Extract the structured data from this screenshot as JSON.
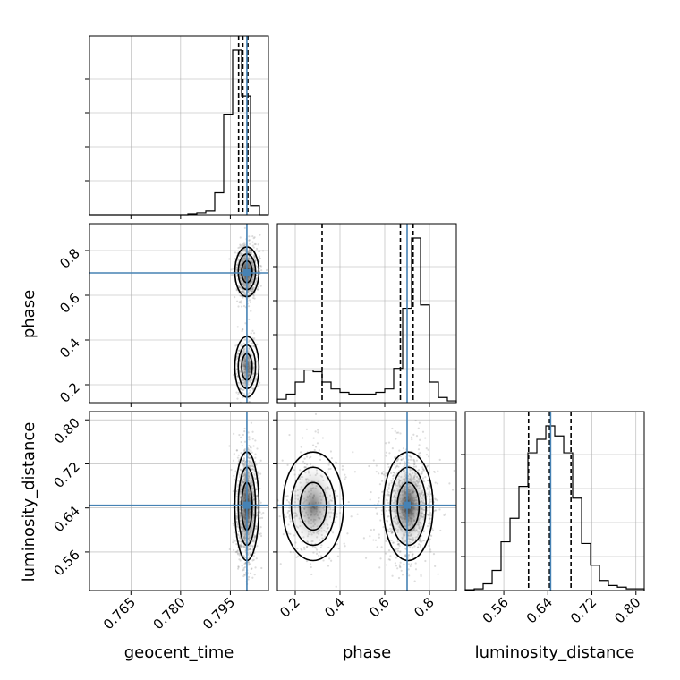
{
  "chart_data": {
    "type": "corner",
    "parameters": [
      "geocent_time",
      "phase",
      "luminosity_distance"
    ],
    "truths": {
      "geocent_time": 0.8,
      "phase": 0.7,
      "luminosity_distance": 0.645
    },
    "ranges": {
      "geocent_time": [
        0.7525,
        0.8065
      ],
      "phase": [
        0.12,
        0.92
      ],
      "luminosity_distance": [
        0.49,
        0.815
      ]
    },
    "ticks": {
      "geocent_time": [
        0.765,
        0.78,
        0.795
      ],
      "phase": [
        0.2,
        0.4,
        0.6,
        0.8
      ],
      "luminosity_distance": [
        0.56,
        0.64,
        0.72,
        0.8
      ]
    },
    "tick_labels": {
      "geocent_time": [
        "0.765",
        "0.780",
        "0.795"
      ],
      "phase": [
        "0.2",
        "0.4",
        "0.6",
        "0.8"
      ],
      "luminosity_distance": [
        "0.56",
        "0.64",
        "0.72",
        "0.80"
      ]
    },
    "quantiles": {
      "geocent_time": [
        0.7975,
        0.7988,
        0.8003
      ],
      "phase": [
        0.32,
        0.67,
        0.727
      ],
      "luminosity_distance": [
        0.605,
        0.643,
        0.682
      ]
    },
    "histograms": {
      "geocent_time": {
        "edges": [
          0.7525,
          0.7552,
          0.7579,
          0.7606,
          0.7633,
          0.766,
          0.7687,
          0.7714,
          0.7741,
          0.7768,
          0.7795,
          0.7822,
          0.7849,
          0.7876,
          0.7903,
          0.793,
          0.7957,
          0.7984,
          0.8011,
          0.8038,
          0.8065
        ],
        "counts": [
          0,
          0,
          0,
          0,
          0,
          0,
          0,
          0,
          0,
          0,
          0,
          0.005,
          0.01,
          0.02,
          0.12,
          0.55,
          0.9,
          0.65,
          0.05,
          0
        ]
      },
      "phase": {
        "edges": [
          0.12,
          0.16,
          0.2,
          0.24,
          0.28,
          0.32,
          0.36,
          0.4,
          0.44,
          0.48,
          0.52,
          0.56,
          0.6,
          0.64,
          0.68,
          0.72,
          0.76,
          0.8,
          0.84,
          0.88,
          0.92
        ],
        "counts": [
          0.02,
          0.05,
          0.12,
          0.19,
          0.18,
          0.12,
          0.08,
          0.06,
          0.05,
          0.05,
          0.05,
          0.06,
          0.08,
          0.2,
          0.55,
          0.96,
          0.57,
          0.12,
          0.03,
          0.01
        ]
      },
      "luminosity_distance": {
        "edges": [
          0.49,
          0.5063,
          0.5225,
          0.5388,
          0.555,
          0.5713,
          0.5875,
          0.6038,
          0.62,
          0.6363,
          0.6525,
          0.6688,
          0.685,
          0.7013,
          0.7175,
          0.7338,
          0.75,
          0.7663,
          0.7825,
          0.7988,
          0.815
        ],
        "counts": [
          0.005,
          0.01,
          0.04,
          0.12,
          0.29,
          0.43,
          0.62,
          0.82,
          0.9,
          0.98,
          0.92,
          0.82,
          0.55,
          0.28,
          0.15,
          0.06,
          0.03,
          0.02,
          0.01,
          0.01
        ]
      }
    },
    "modes": {
      "geocent_time": [
        {
          "center": 0.8,
          "spread": 0.0012
        }
      ],
      "phase": [
        {
          "center": 0.705,
          "spread": 0.045,
          "weight": 0.72
        },
        {
          "center": 0.28,
          "spread": 0.055,
          "weight": 0.28
        }
      ],
      "luminosity_distance": [
        {
          "center": 0.643,
          "spread": 0.04
        }
      ]
    },
    "axis_labels": {
      "x": [
        "geocent_time",
        "phase",
        "luminosity_distance"
      ],
      "y": [
        "phase",
        "luminosity_distance"
      ]
    },
    "grid": true,
    "colors": {
      "truth": "#4682b4",
      "histogram": "#000000",
      "quantile": "#000000",
      "grid": "#b0b0b0",
      "density": "#000000",
      "points": "#808080"
    }
  }
}
